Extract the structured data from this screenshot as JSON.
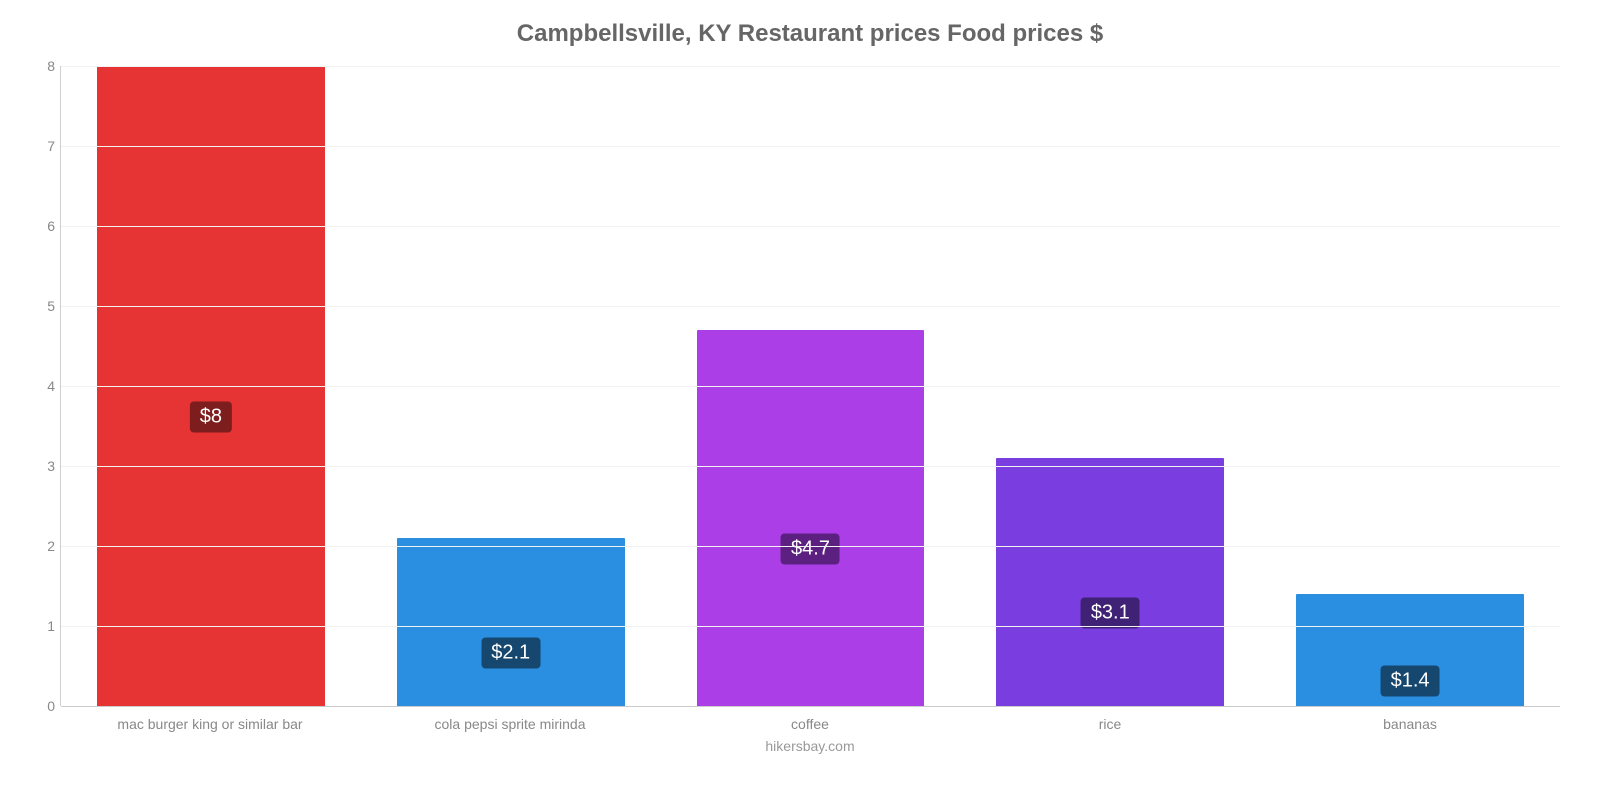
{
  "chart": {
    "type": "bar",
    "title": "Campbellsville, KY Restaurant prices Food prices $",
    "title_fontsize": 24,
    "title_color": "#666666",
    "caption": "hikersbay.com",
    "caption_fontsize": 14,
    "caption_color": "#999999",
    "background_color": "#ffffff",
    "axis_color": "#cccccc",
    "grid_color": "#f2f2f2",
    "tick_label_color": "#888888",
    "tick_fontsize": 14,
    "xlabel_fontsize": 14,
    "ylim": [
      0,
      8
    ],
    "ytick_step": 1,
    "bar_width_ratio": 0.76,
    "categories": [
      "mac burger king or similar bar",
      "cola pepsi sprite mirinda",
      "coffee",
      "rice",
      "bananas"
    ],
    "values": [
      8,
      2.1,
      4.7,
      3.1,
      1.4
    ],
    "value_labels": [
      "$8",
      "$2.1",
      "$4.7",
      "$3.1",
      "$1.4"
    ],
    "bar_colors": [
      "#e63434",
      "#2a8fe0",
      "#ac3ee8",
      "#7a3ee0",
      "#2a8fe0"
    ],
    "label_bg_colors": [
      "#7d1d1d",
      "#15476f",
      "#5c2180",
      "#3f2275",
      "#15476f"
    ],
    "value_label_fontsize": 20,
    "value_label_color": "#ffffff"
  }
}
